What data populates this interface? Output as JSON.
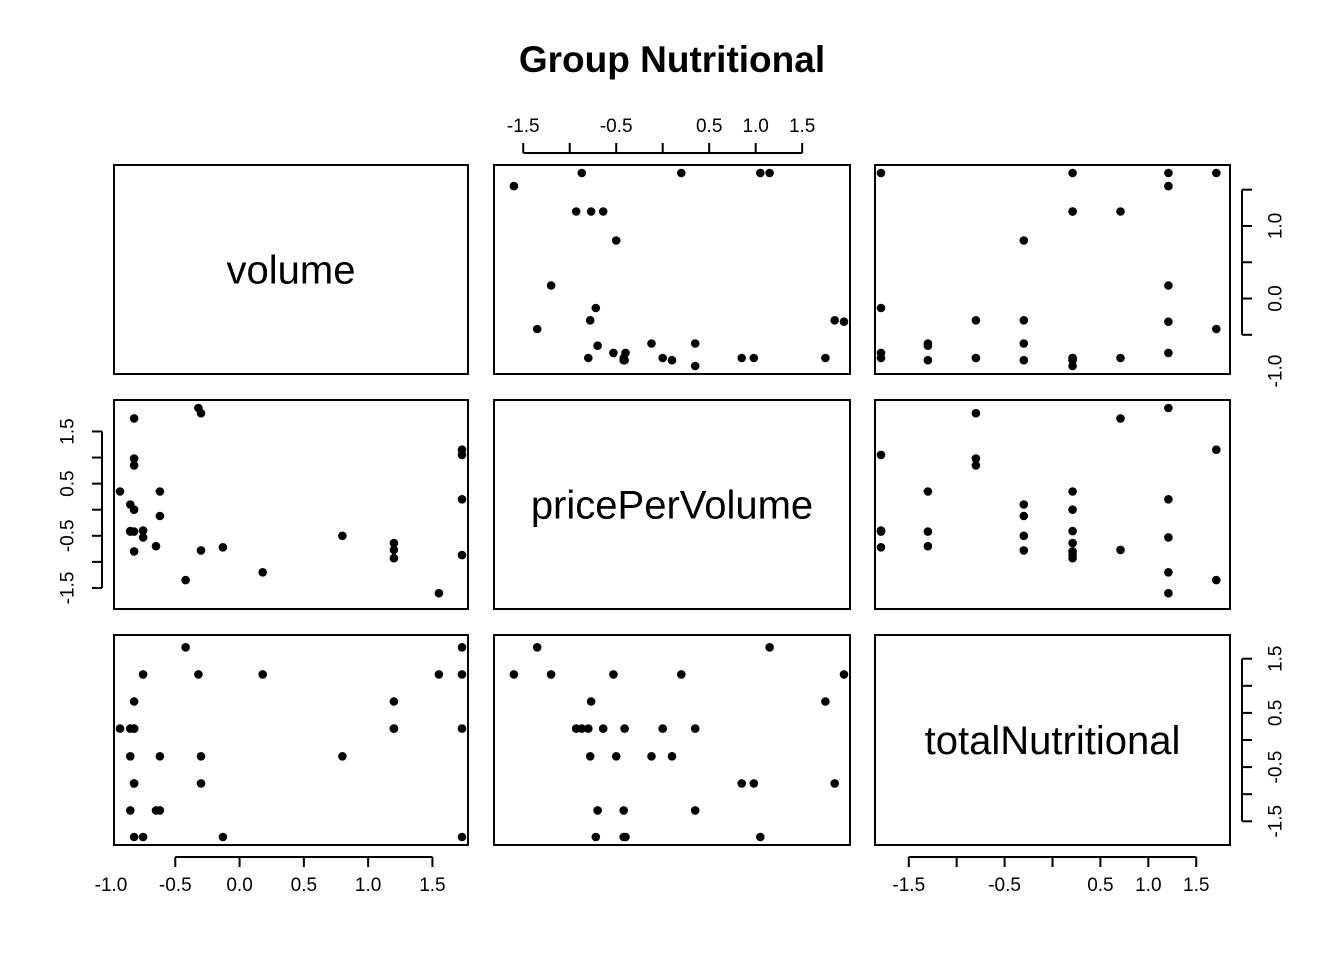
{
  "chart_data": {
    "type": "scatter",
    "title": "Group Nutritional",
    "variables": [
      "volume",
      "pricePerVolume",
      "totalNutritional"
    ],
    "axis_ticks": {
      "volume": [
        "-1.0",
        "-0.5",
        "0.0",
        "0.5",
        "1.0",
        "1.5"
      ],
      "pricePerVolume": [
        "-1.5",
        "-0.5",
        "0.5",
        "1.5"
      ],
      "totalNutritional": [
        "-1.5",
        "-0.5",
        "0.5",
        "1.5"
      ]
    },
    "axis_tick_labels": {
      "top_pricePerVolume": [
        "-1.5",
        "-0.5",
        "0.5",
        "1.0",
        "1.5"
      ],
      "right_volume": [
        "-1.0",
        "0.0",
        "1.0"
      ],
      "bottom_totalNutritional": [
        "-1.5",
        "-0.5",
        "0.5",
        "1.0",
        "1.5"
      ]
    },
    "ranges": {
      "volume": [
        -0.93,
        1.73
      ],
      "pricePerVolume": [
        -1.75,
        1.95
      ],
      "totalNutritional": [
        -1.79,
        1.79
      ]
    },
    "points": [
      {
        "volume": 1.73,
        "pricePerVolume": -0.87,
        "totalNutritional": 0.21
      },
      {
        "volume": 1.2,
        "pricePerVolume": -0.93,
        "totalNutritional": 0.21
      },
      {
        "volume": 0.8,
        "pricePerVolume": -0.5,
        "totalNutritional": -0.3
      },
      {
        "volume": -0.3,
        "pricePerVolume": -0.78,
        "totalNutritional": -0.3
      },
      {
        "volume": -0.62,
        "pricePerVolume": -0.12,
        "totalNutritional": -0.3
      },
      {
        "volume": 1.2,
        "pricePerVolume": -0.64,
        "totalNutritional": 0.21
      },
      {
        "volume": -0.13,
        "pricePerVolume": -0.72,
        "totalNutritional": -1.79
      },
      {
        "volume": -0.82,
        "pricePerVolume": -0.42,
        "totalNutritional": -1.79
      },
      {
        "volume": 1.73,
        "pricePerVolume": 1.05,
        "totalNutritional": -1.79
      },
      {
        "volume": -0.82,
        "pricePerVolume": 0.0,
        "totalNutritional": 0.21
      },
      {
        "volume": 0.18,
        "pricePerVolume": -1.2,
        "totalNutritional": 1.21
      },
      {
        "volume": 1.2,
        "pricePerVolume": -0.77,
        "totalNutritional": 0.71
      },
      {
        "volume": -0.75,
        "pricePerVolume": -0.53,
        "totalNutritional": 1.21
      },
      {
        "volume": -0.85,
        "pricePerVolume": -0.41,
        "totalNutritional": 0.21
      },
      {
        "volume": -0.93,
        "pricePerVolume": 0.35,
        "totalNutritional": 0.21
      },
      {
        "volume": -0.82,
        "pricePerVolume": 1.75,
        "totalNutritional": 0.71
      },
      {
        "volume": -0.3,
        "pricePerVolume": 1.85,
        "totalNutritional": -0.8
      },
      {
        "volume": -0.82,
        "pricePerVolume": 0.98,
        "totalNutritional": -0.8
      },
      {
        "volume": -0.62,
        "pricePerVolume": 0.35,
        "totalNutritional": -1.3
      },
      {
        "volume": -0.85,
        "pricePerVolume": -0.42,
        "totalNutritional": -1.3
      },
      {
        "volume": -0.75,
        "pricePerVolume": -0.4,
        "totalNutritional": -1.79
      },
      {
        "volume": -0.65,
        "pricePerVolume": -0.7,
        "totalNutritional": -1.3
      },
      {
        "volume": -0.82,
        "pricePerVolume": 0.85,
        "totalNutritional": -0.8
      },
      {
        "volume": 1.55,
        "pricePerVolume": -1.6,
        "totalNutritional": 1.21
      },
      {
        "volume": 1.73,
        "pricePerVolume": 1.15,
        "totalNutritional": 1.71
      },
      {
        "volume": -0.42,
        "pricePerVolume": -1.35,
        "totalNutritional": 1.71
      },
      {
        "volume": 1.73,
        "pricePerVolume": 0.2,
        "totalNutritional": 1.21
      },
      {
        "volume": -0.32,
        "pricePerVolume": 1.95,
        "totalNutritional": 1.21
      },
      {
        "volume": -0.82,
        "pricePerVolume": -0.8,
        "totalNutritional": 0.21
      },
      {
        "volume": -0.85,
        "pricePerVolume": 0.1,
        "totalNutritional": -0.3
      }
    ],
    "grid": false,
    "legend": "none"
  }
}
